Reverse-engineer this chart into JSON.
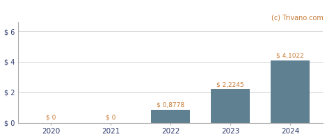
{
  "categories": [
    "2020",
    "2021",
    "2022",
    "2023",
    "2024"
  ],
  "values": [
    0,
    0,
    0.8778,
    2.2245,
    4.1022
  ],
  "labels": [
    "$ 0",
    "$ 0",
    "$ 0,8778",
    "$ 2,2245",
    "$ 4,1022"
  ],
  "bar_color": "#5f8090",
  "background_color": "#ffffff",
  "yticks": [
    0,
    2,
    4,
    6
  ],
  "ytick_labels": [
    "$ 0",
    "$ 2",
    "$ 4",
    "$ 6"
  ],
  "ylim": [
    0,
    6.6
  ],
  "watermark": "(c) Trivano.com",
  "watermark_color": "#c87d3a",
  "label_color": "#c87d3a",
  "tick_label_color": "#2e3a6e",
  "grid_color": "#cccccc",
  "figsize": [
    4.7,
    2.0
  ],
  "dpi": 100
}
